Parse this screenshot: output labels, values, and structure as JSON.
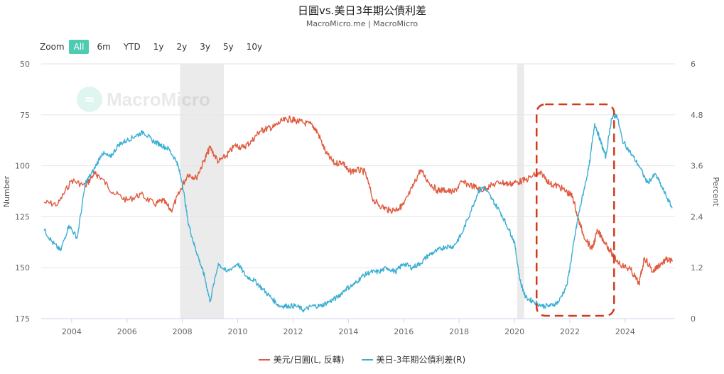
{
  "title": "日圓vs.美日3年期公債利差",
  "subtitle": "MacroMicro.me | MacroMicro",
  "zoom": {
    "label": "Zoom",
    "options": [
      "All",
      "6m",
      "YTD",
      "1y",
      "2y",
      "3y",
      "5y",
      "10y"
    ],
    "selected": "All"
  },
  "watermark": "MacroMicro",
  "chart_data": {
    "type": "line",
    "title": "日圓vs.美日3年期公債利差",
    "subtitle": "MacroMicro.me | MacroMicro",
    "left_axis": {
      "label": "Number",
      "range": [
        50,
        175
      ],
      "reversed": true,
      "ticks": [
        "50",
        "75",
        "100",
        "125",
        "150",
        "175"
      ]
    },
    "right_axis": {
      "label": "Percent",
      "range": [
        0,
        6
      ],
      "ticks": [
        "0",
        "1.2",
        "2.4",
        "3.6",
        "4.8",
        "6"
      ]
    },
    "x_range": [
      2002.9,
      2025.8
    ],
    "x_ticks": [
      "2004",
      "2006",
      "2008",
      "2010",
      "2012",
      "2014",
      "2016",
      "2018",
      "2020",
      "2022",
      "2024"
    ],
    "recession_bands": [
      [
        2007.92,
        2009.5
      ],
      [
        2020.1,
        2020.35
      ]
    ],
    "highlight_box": [
      2020.8,
      2023.6
    ],
    "grid": true,
    "legend_position": "bottom",
    "series": [
      {
        "name": "美元/日圓(L, 反轉)",
        "axis": "left",
        "color": "#e05a3f",
        "x": [
          2003.0,
          2003.5,
          2004.0,
          2004.5,
          2004.8,
          2005.0,
          2005.5,
          2006.0,
          2006.5,
          2007.0,
          2007.3,
          2007.6,
          2007.9,
          2008.2,
          2008.5,
          2008.8,
          2009.0,
          2009.3,
          2009.6,
          2009.9,
          2010.2,
          2010.5,
          2010.8,
          2011.0,
          2011.3,
          2011.6,
          2011.9,
          2012.1,
          2012.4,
          2012.7,
          2012.9,
          2013.2,
          2013.5,
          2013.8,
          2014.0,
          2014.3,
          2014.6,
          2014.9,
          2015.2,
          2015.5,
          2015.8,
          2016.0,
          2016.3,
          2016.6,
          2016.9,
          2017.2,
          2017.5,
          2017.8,
          2018.1,
          2018.5,
          2018.8,
          2019.1,
          2019.5,
          2019.8,
          2020.1,
          2020.4,
          2020.8,
          2021.0,
          2021.3,
          2021.6,
          2021.9,
          2022.1,
          2022.3,
          2022.5,
          2022.8,
          2023.0,
          2023.3,
          2023.6,
          2023.9,
          2024.2,
          2024.5,
          2024.7,
          2025.0,
          2025.2,
          2025.5,
          2025.7
        ],
        "values": [
          118,
          119,
          107,
          110,
          104,
          105,
          113,
          117,
          114,
          119,
          117,
          122,
          113,
          104,
          106,
          97,
          91,
          98,
          95,
          90,
          91,
          88,
          83,
          82,
          81,
          78,
          77,
          78,
          79,
          80,
          84,
          94,
          99,
          98,
          103,
          102,
          103,
          117,
          120,
          122,
          121,
          119,
          111,
          102,
          108,
          112,
          112,
          113,
          108,
          110,
          112,
          110,
          108,
          109,
          108,
          107,
          104,
          104,
          109,
          110,
          113,
          115,
          126,
          134,
          141,
          132,
          138,
          145,
          149,
          151,
          158,
          145,
          152,
          149,
          146,
          147
        ]
      },
      {
        "name": "美日-3年期公債利差(R)",
        "axis": "right",
        "color": "#3aaed3",
        "x": [
          2003.0,
          2003.3,
          2003.6,
          2003.9,
          2004.2,
          2004.5,
          2004.8,
          2005.1,
          2005.4,
          2005.7,
          2006.0,
          2006.3,
          2006.6,
          2006.9,
          2007.2,
          2007.5,
          2007.8,
          2008.0,
          2008.2,
          2008.4,
          2008.6,
          2008.8,
          2009.0,
          2009.3,
          2009.6,
          2010.0,
          2010.3,
          2010.6,
          2010.9,
          2011.2,
          2011.5,
          2011.8,
          2012.1,
          2012.4,
          2012.7,
          2013.0,
          2013.3,
          2013.6,
          2013.9,
          2014.2,
          2014.5,
          2014.8,
          2015.1,
          2015.4,
          2015.7,
          2016.0,
          2016.3,
          2016.6,
          2016.9,
          2017.2,
          2017.5,
          2017.8,
          2018.1,
          2018.4,
          2018.7,
          2018.9,
          2019.2,
          2019.5,
          2019.8,
          2020.0,
          2020.2,
          2020.4,
          2020.7,
          2021.0,
          2021.3,
          2021.6,
          2021.9,
          2022.1,
          2022.3,
          2022.5,
          2022.7,
          2022.9,
          2023.1,
          2023.3,
          2023.5,
          2023.7,
          2023.9,
          2024.2,
          2024.5,
          2024.8,
          2025.1,
          2025.4,
          2025.7
        ],
        "values": [
          2.1,
          1.8,
          1.6,
          2.2,
          1.9,
          3.2,
          3.5,
          3.9,
          3.8,
          4.1,
          4.2,
          4.3,
          4.4,
          4.2,
          4.1,
          4.0,
          3.7,
          3.2,
          2.3,
          1.8,
          1.4,
          1.0,
          0.4,
          1.3,
          1.1,
          1.3,
          1.0,
          0.9,
          0.7,
          0.5,
          0.3,
          0.3,
          0.3,
          0.2,
          0.3,
          0.3,
          0.4,
          0.5,
          0.7,
          0.8,
          1.0,
          1.1,
          1.1,
          1.2,
          1.1,
          1.3,
          1.2,
          1.3,
          1.5,
          1.6,
          1.7,
          1.7,
          2.0,
          2.5,
          3.0,
          3.1,
          2.8,
          2.5,
          2.1,
          1.8,
          0.9,
          0.5,
          0.4,
          0.3,
          0.3,
          0.4,
          0.8,
          1.6,
          2.4,
          3.0,
          3.6,
          4.6,
          4.2,
          3.8,
          4.7,
          4.8,
          4.2,
          3.9,
          3.6,
          3.2,
          3.4,
          3.0,
          2.6
        ]
      }
    ]
  }
}
